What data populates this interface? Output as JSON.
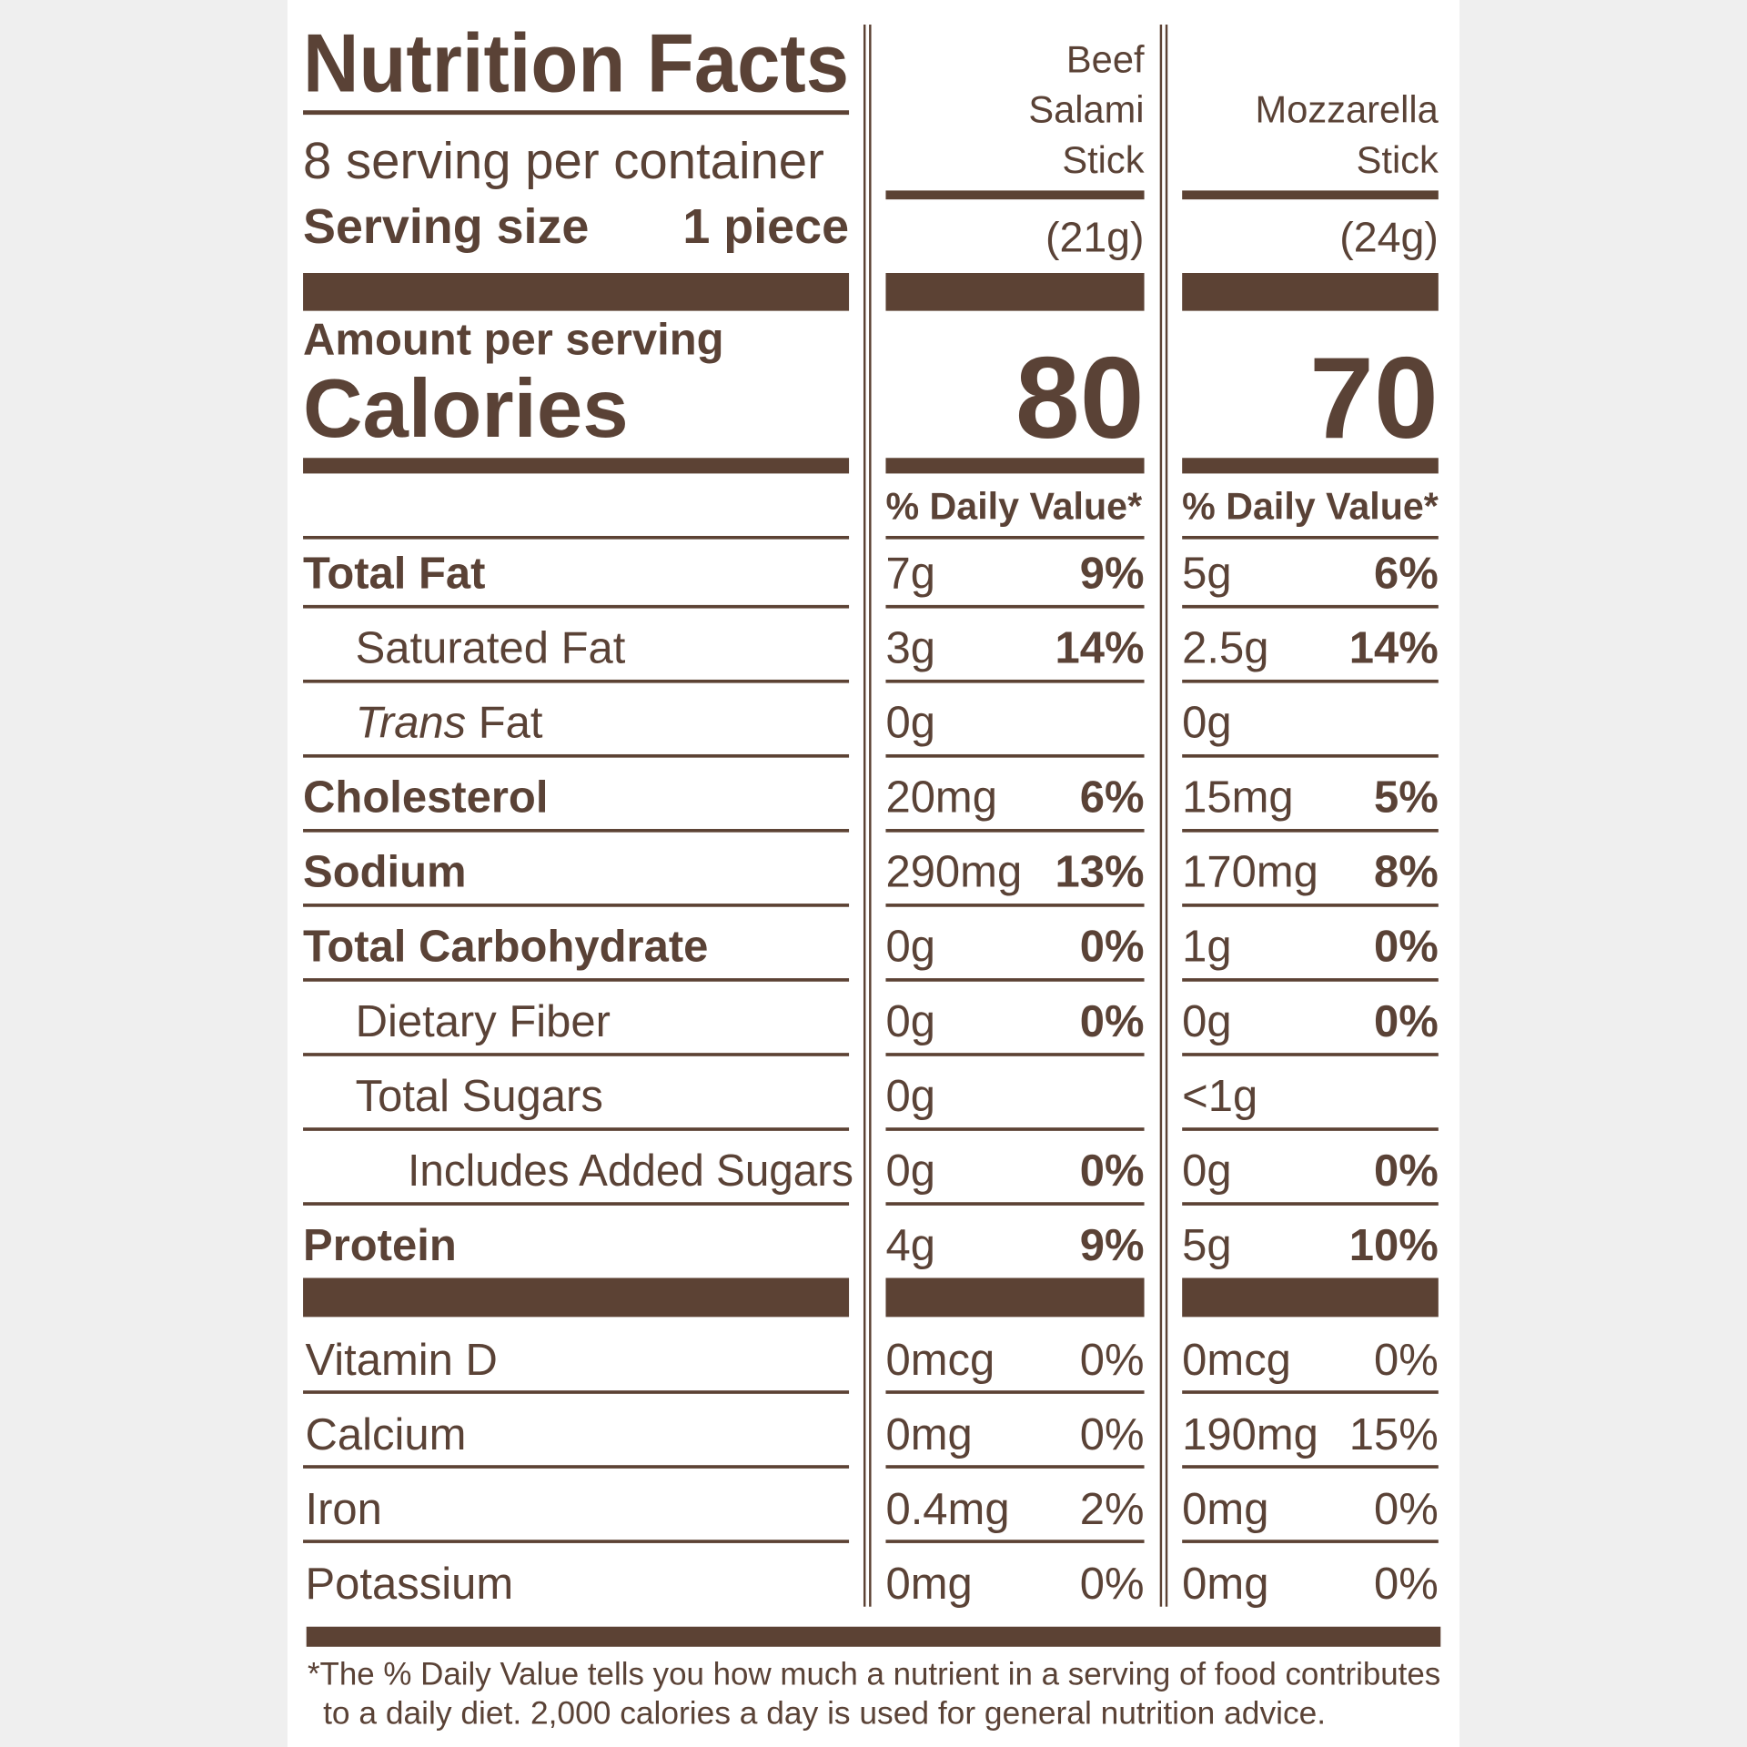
{
  "header": {
    "title": "Nutrition Facts",
    "servings": "8 serving per container",
    "serving_size_label": "Serving size",
    "serving_size_value": "1 piece"
  },
  "columns": [
    {
      "name_lines": [
        "Beef",
        "Salami",
        "Stick"
      ],
      "weight": "(21g)",
      "calories": 80
    },
    {
      "name_lines": [
        "Mozzarella",
        "Stick"
      ],
      "weight": "(24g)",
      "calories": 70
    }
  ],
  "amount_per_serving": "Amount per serving",
  "calories_label": "Calories",
  "daily_value_header": "% Daily Value*",
  "nutrients": [
    {
      "label": "Total Fat",
      "style": "bold",
      "indent": 0,
      "values": [
        [
          "7g",
          "9%"
        ],
        [
          "5g",
          "6%"
        ]
      ]
    },
    {
      "label": "Saturated Fat",
      "style": "normal",
      "indent": 1,
      "values": [
        [
          "3g",
          "14%"
        ],
        [
          "2.5g",
          "14%"
        ]
      ]
    },
    {
      "label_italic": "Trans",
      "label": "Fat",
      "style": "normal",
      "indent": 1,
      "values": [
        [
          "0g"
        ],
        [
          "0g"
        ]
      ]
    },
    {
      "label": "Cholesterol",
      "style": "bold",
      "indent": 0,
      "values": [
        [
          "20mg",
          "6%"
        ],
        [
          "15mg",
          "5%"
        ]
      ]
    },
    {
      "label": "Sodium",
      "style": "bold",
      "indent": 0,
      "values": [
        [
          "290mg",
          "13%"
        ],
        [
          "170mg",
          "8%"
        ]
      ]
    },
    {
      "label": "Total Carbohydrate",
      "style": "bold",
      "indent": 0,
      "values": [
        [
          "0g",
          "0%"
        ],
        [
          "1g",
          "0%"
        ]
      ]
    },
    {
      "label": "Dietary Fiber",
      "style": "normal",
      "indent": 1,
      "values": [
        [
          "0g",
          "0%"
        ],
        [
          "0g",
          "0%"
        ]
      ]
    },
    {
      "label": "Total Sugars",
      "style": "normal",
      "indent": 1,
      "values": [
        [
          "0g"
        ],
        [
          "<1g"
        ]
      ]
    },
    {
      "label": "Includes Added Sugars",
      "style": "normal",
      "indent": 2,
      "values": [
        [
          "0g",
          "0%"
        ],
        [
          "0g",
          "0%"
        ]
      ]
    },
    {
      "label": "Protein",
      "style": "bold",
      "indent": 0,
      "values": [
        [
          "4g",
          "9%"
        ],
        [
          "5g",
          "10%"
        ]
      ]
    }
  ],
  "vitamins": [
    {
      "label": "Vitamin D",
      "values": [
        [
          "0mcg",
          "0%"
        ],
        [
          "0mcg",
          "0%"
        ]
      ]
    },
    {
      "label": "Calcium",
      "values": [
        [
          "0mg",
          "0%"
        ],
        [
          "190mg",
          "15%"
        ]
      ]
    },
    {
      "label": "Iron",
      "values": [
        [
          "0.4mg",
          "2%"
        ],
        [
          "0mg",
          "0%"
        ]
      ]
    },
    {
      "label": "Potassium",
      "values": [
        [
          "0mg",
          "0%"
        ],
        [
          "0mg",
          "0%"
        ]
      ]
    }
  ],
  "footnote": [
    "*The % Daily Value tells you how much a nutrient in a serving of food contributes",
    "to a daily diet. 2,000 calories a day is used for general nutrition advice."
  ]
}
